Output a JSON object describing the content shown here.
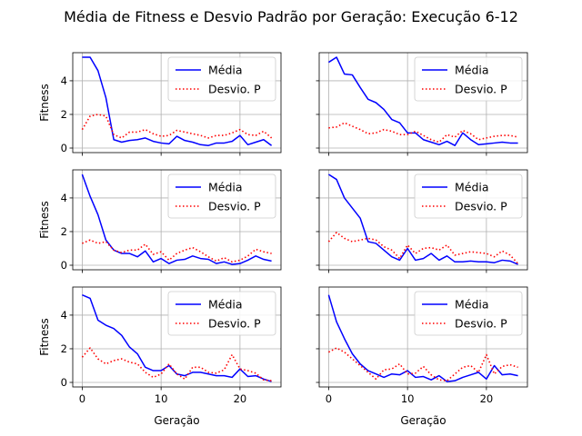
{
  "figure": {
    "title": "Média de Fitness e Desvio Padrão por Geração: Execução 6-12",
    "xlabel": "Geração",
    "ylabel": "Fitness"
  },
  "colors": {
    "mean": "#0000ff",
    "std": "#ff0000",
    "grid": "#b0b0b0"
  },
  "chart_data": [
    {
      "type": "line",
      "panel": "row1-col1",
      "x": [
        0,
        1,
        2,
        3,
        4,
        5,
        6,
        7,
        8,
        9,
        10,
        11,
        12,
        13,
        14,
        15,
        16,
        17,
        18,
        19,
        20,
        21,
        22,
        23,
        24
      ],
      "xlim": [
        -1.2,
        25.2
      ],
      "ylim": [
        -0.27,
        5.67
      ],
      "xticks": [
        0,
        10,
        20
      ],
      "yticks": [
        0,
        2,
        4
      ],
      "grid": true,
      "legend": "upper right",
      "series": [
        {
          "name": "Média",
          "style": "solid",
          "values": [
            5.4,
            5.4,
            4.6,
            3.0,
            0.5,
            0.35,
            0.45,
            0.5,
            0.6,
            0.4,
            0.3,
            0.25,
            0.7,
            0.45,
            0.35,
            0.2,
            0.15,
            0.3,
            0.3,
            0.4,
            0.75,
            0.2,
            0.35,
            0.5,
            0.15
          ]
        },
        {
          "name": "Desvio. P",
          "style": "dotted",
          "values": [
            1.1,
            1.9,
            2.0,
            1.9,
            0.8,
            0.6,
            0.95,
            0.95,
            1.1,
            0.85,
            0.7,
            0.75,
            1.05,
            0.95,
            0.85,
            0.75,
            0.6,
            0.75,
            0.75,
            0.9,
            1.1,
            0.8,
            0.75,
            1.0,
            0.6
          ]
        }
      ]
    },
    {
      "type": "line",
      "panel": "row1-col2",
      "x": [
        0,
        1,
        2,
        3,
        4,
        5,
        6,
        7,
        8,
        9,
        10,
        11,
        12,
        13,
        14,
        15,
        16,
        17,
        18,
        19,
        20,
        21,
        22,
        23,
        24
      ],
      "xlim": [
        -1.2,
        25.2
      ],
      "ylim": [
        -0.27,
        5.67
      ],
      "xticks": [
        0,
        10,
        20
      ],
      "yticks": [
        0,
        2,
        4
      ],
      "grid": true,
      "legend": "upper right",
      "series": [
        {
          "name": "Média",
          "style": "solid",
          "values": [
            5.1,
            5.4,
            4.4,
            4.35,
            3.6,
            2.9,
            2.7,
            2.3,
            1.7,
            1.5,
            0.9,
            0.9,
            0.5,
            0.35,
            0.2,
            0.4,
            0.15,
            0.9,
            0.5,
            0.2,
            0.25,
            0.3,
            0.35,
            0.3,
            0.3
          ]
        },
        {
          "name": "Desvio. P",
          "style": "dotted",
          "values": [
            1.2,
            1.25,
            1.5,
            1.3,
            1.1,
            0.85,
            0.9,
            1.1,
            1.0,
            0.8,
            0.8,
            1.0,
            0.75,
            0.5,
            0.35,
            0.8,
            0.65,
            1.05,
            0.85,
            0.5,
            0.6,
            0.7,
            0.75,
            0.75,
            0.65
          ]
        }
      ]
    },
    {
      "type": "line",
      "panel": "row2-col1",
      "x": [
        0,
        1,
        2,
        3,
        4,
        5,
        6,
        7,
        8,
        9,
        10,
        11,
        12,
        13,
        14,
        15,
        16,
        17,
        18,
        19,
        20,
        21,
        22,
        23,
        24
      ],
      "xlim": [
        -1.2,
        25.2
      ],
      "ylim": [
        -0.27,
        5.67
      ],
      "xticks": [
        0,
        10,
        20
      ],
      "yticks": [
        0,
        2,
        4
      ],
      "grid": true,
      "legend": "upper right",
      "series": [
        {
          "name": "Média",
          "style": "solid",
          "values": [
            5.4,
            4.1,
            3.0,
            1.5,
            0.9,
            0.7,
            0.7,
            0.5,
            0.85,
            0.2,
            0.4,
            0.1,
            0.3,
            0.35,
            0.55,
            0.4,
            0.35,
            0.1,
            0.2,
            0.05,
            0.1,
            0.3,
            0.55,
            0.35,
            0.25
          ]
        },
        {
          "name": "Desvio. P",
          "style": "dotted",
          "values": [
            1.3,
            1.5,
            1.3,
            1.4,
            0.9,
            0.75,
            0.9,
            0.9,
            1.25,
            0.65,
            0.8,
            0.3,
            0.7,
            0.9,
            1.05,
            0.8,
            0.5,
            0.25,
            0.45,
            0.2,
            0.3,
            0.55,
            0.95,
            0.8,
            0.7
          ]
        }
      ]
    },
    {
      "type": "line",
      "panel": "row2-col2",
      "x": [
        0,
        1,
        2,
        3,
        4,
        5,
        6,
        7,
        8,
        9,
        10,
        11,
        12,
        13,
        14,
        15,
        16,
        17,
        18,
        19,
        20,
        21,
        22,
        23,
        24
      ],
      "xlim": [
        -1.2,
        25.2
      ],
      "ylim": [
        -0.27,
        5.67
      ],
      "xticks": [
        0,
        10,
        20
      ],
      "yticks": [
        0,
        2,
        4
      ],
      "grid": true,
      "legend": "upper right",
      "series": [
        {
          "name": "Média",
          "style": "solid",
          "values": [
            5.4,
            5.1,
            4.0,
            3.4,
            2.8,
            1.4,
            1.3,
            0.9,
            0.5,
            0.3,
            1.0,
            0.3,
            0.4,
            0.7,
            0.3,
            0.55,
            0.2,
            0.2,
            0.25,
            0.2,
            0.2,
            0.15,
            0.3,
            0.25,
            0.05
          ]
        },
        {
          "name": "Desvio. P",
          "style": "dotted",
          "values": [
            1.4,
            1.95,
            1.6,
            1.4,
            1.5,
            1.6,
            1.5,
            1.1,
            0.9,
            0.4,
            1.2,
            0.7,
            1.0,
            1.05,
            0.9,
            1.2,
            0.6,
            0.7,
            0.8,
            0.75,
            0.7,
            0.5,
            0.85,
            0.6,
            0.1
          ]
        }
      ]
    },
    {
      "type": "line",
      "panel": "row3-col1",
      "x": [
        0,
        1,
        2,
        3,
        4,
        5,
        6,
        7,
        8,
        9,
        10,
        11,
        12,
        13,
        14,
        15,
        16,
        17,
        18,
        19,
        20,
        21,
        22,
        23,
        24
      ],
      "xlim": [
        -1.2,
        25.2
      ],
      "ylim": [
        -0.27,
        5.67
      ],
      "xticks": [
        0,
        10,
        20
      ],
      "yticks": [
        0,
        2,
        4
      ],
      "grid": true,
      "legend": "upper right",
      "series": [
        {
          "name": "Média",
          "style": "solid",
          "values": [
            5.2,
            5.0,
            3.7,
            3.4,
            3.2,
            2.8,
            2.1,
            1.7,
            0.9,
            0.7,
            0.7,
            1.0,
            0.5,
            0.4,
            0.6,
            0.6,
            0.5,
            0.4,
            0.4,
            0.3,
            0.8,
            0.35,
            0.4,
            0.2,
            0.05
          ]
        },
        {
          "name": "Desvio. P",
          "style": "dotted",
          "values": [
            1.5,
            2.05,
            1.4,
            1.1,
            1.3,
            1.4,
            1.2,
            1.1,
            0.6,
            0.3,
            0.5,
            1.1,
            0.5,
            0.2,
            0.9,
            0.9,
            0.6,
            0.55,
            0.75,
            1.65,
            0.8,
            0.7,
            0.55,
            0.15,
            0.1
          ]
        }
      ]
    },
    {
      "type": "line",
      "panel": "row3-col2",
      "x": [
        0,
        1,
        2,
        3,
        4,
        5,
        6,
        7,
        8,
        9,
        10,
        11,
        12,
        13,
        14,
        15,
        16,
        17,
        18,
        19,
        20,
        21,
        22,
        23,
        24
      ],
      "xlim": [
        -1.2,
        25.2
      ],
      "ylim": [
        -0.27,
        5.67
      ],
      "xticks": [
        0,
        10,
        20
      ],
      "yticks": [
        0,
        2,
        4
      ],
      "grid": true,
      "legend": "upper right",
      "series": [
        {
          "name": "Média",
          "style": "solid",
          "values": [
            5.2,
            3.6,
            2.6,
            1.7,
            1.1,
            0.7,
            0.5,
            0.3,
            0.5,
            0.45,
            0.7,
            0.3,
            0.35,
            0.15,
            0.4,
            0.05,
            0.1,
            0.3,
            0.45,
            0.6,
            0.2,
            1.0,
            0.45,
            0.5,
            0.4
          ]
        },
        {
          "name": "Desvio. P",
          "style": "dotted",
          "values": [
            1.8,
            2.05,
            1.8,
            1.4,
            1.0,
            0.6,
            0.2,
            0.75,
            0.8,
            1.1,
            0.5,
            0.55,
            0.95,
            0.45,
            0.15,
            0.1,
            0.5,
            0.9,
            1.0,
            0.6,
            1.65,
            0.5,
            0.95,
            1.05,
            0.9
          ]
        }
      ]
    }
  ]
}
